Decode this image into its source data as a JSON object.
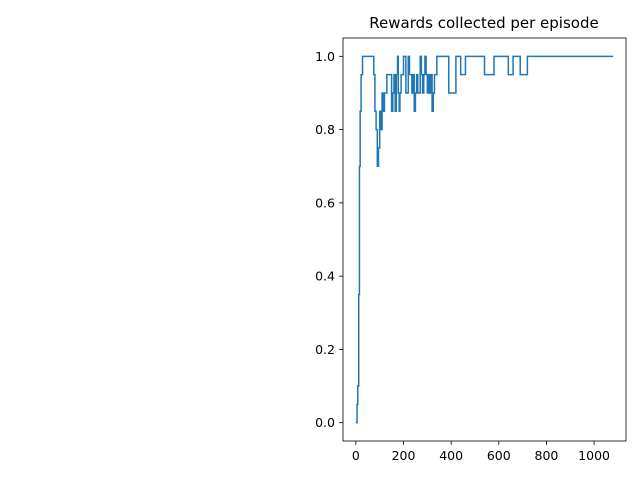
{
  "chart_data": {
    "type": "line",
    "title": "Rewards collected per episode",
    "xlabel": "",
    "ylabel": "",
    "xlim": [
      -54,
      1134
    ],
    "ylim": [
      -0.05,
      1.05
    ],
    "x_ticks": [
      0,
      200,
      400,
      600,
      800,
      1000
    ],
    "y_ticks": [
      0.0,
      0.2,
      0.4,
      0.6,
      0.8,
      1.0
    ],
    "x_tick_labels": [
      "0",
      "200",
      "400",
      "600",
      "800",
      "1000"
    ],
    "y_tick_labels": [
      "0.0",
      "0.2",
      "0.4",
      "0.6",
      "0.8",
      "1.0"
    ],
    "grid": false,
    "legend": "none",
    "step": true,
    "series": [
      {
        "color": "#1f77b4",
        "x": [
          0,
          5,
          8,
          12,
          15,
          18,
          22,
          25,
          28,
          32,
          35,
          40,
          60,
          75,
          80,
          85,
          90,
          95,
          100,
          105,
          110,
          115,
          120,
          125,
          130,
          140,
          150,
          155,
          160,
          165,
          170,
          175,
          178,
          182,
          185,
          190,
          195,
          200,
          205,
          210,
          215,
          220,
          225,
          230,
          235,
          240,
          245,
          250,
          255,
          260,
          270,
          275,
          280,
          285,
          290,
          295,
          300,
          305,
          310,
          315,
          320,
          325,
          330,
          335,
          340,
          345,
          350,
          355,
          360,
          365,
          370,
          390,
          400,
          420,
          430,
          440,
          445,
          460,
          480,
          490,
          500,
          510,
          520,
          540,
          560,
          580,
          600,
          620,
          640,
          650,
          660,
          670,
          690,
          700,
          720,
          740,
          760,
          800,
          900,
          1000,
          1080
        ],
        "y": [
          0.0,
          0.05,
          0.1,
          0.35,
          0.7,
          0.85,
          0.95,
          0.95,
          1.0,
          1.0,
          1.0,
          1.0,
          1.0,
          0.95,
          0.85,
          0.8,
          0.7,
          0.75,
          0.85,
          0.8,
          0.9,
          0.85,
          0.9,
          0.9,
          0.95,
          0.95,
          0.85,
          0.9,
          0.95,
          0.85,
          0.95,
          1.0,
          0.9,
          0.85,
          0.9,
          0.95,
          0.95,
          1.0,
          1.0,
          0.9,
          0.9,
          1.0,
          0.95,
          0.95,
          0.9,
          0.95,
          0.85,
          0.9,
          0.95,
          0.9,
          1.0,
          0.95,
          0.9,
          0.95,
          1.0,
          0.95,
          0.9,
          0.95,
          0.9,
          0.95,
          0.85,
          0.9,
          0.95,
          0.95,
          1.0,
          1.0,
          1.0,
          1.0,
          1.0,
          1.0,
          1.0,
          0.9,
          0.9,
          1.0,
          1.0,
          0.95,
          0.95,
          1.0,
          1.0,
          1.0,
          1.0,
          1.0,
          1.0,
          0.95,
          0.95,
          1.0,
          1.0,
          1.0,
          0.95,
          0.95,
          1.0,
          1.0,
          0.95,
          0.95,
          1.0,
          1.0,
          1.0,
          1.0,
          1.0,
          1.0,
          1.0
        ]
      }
    ]
  }
}
